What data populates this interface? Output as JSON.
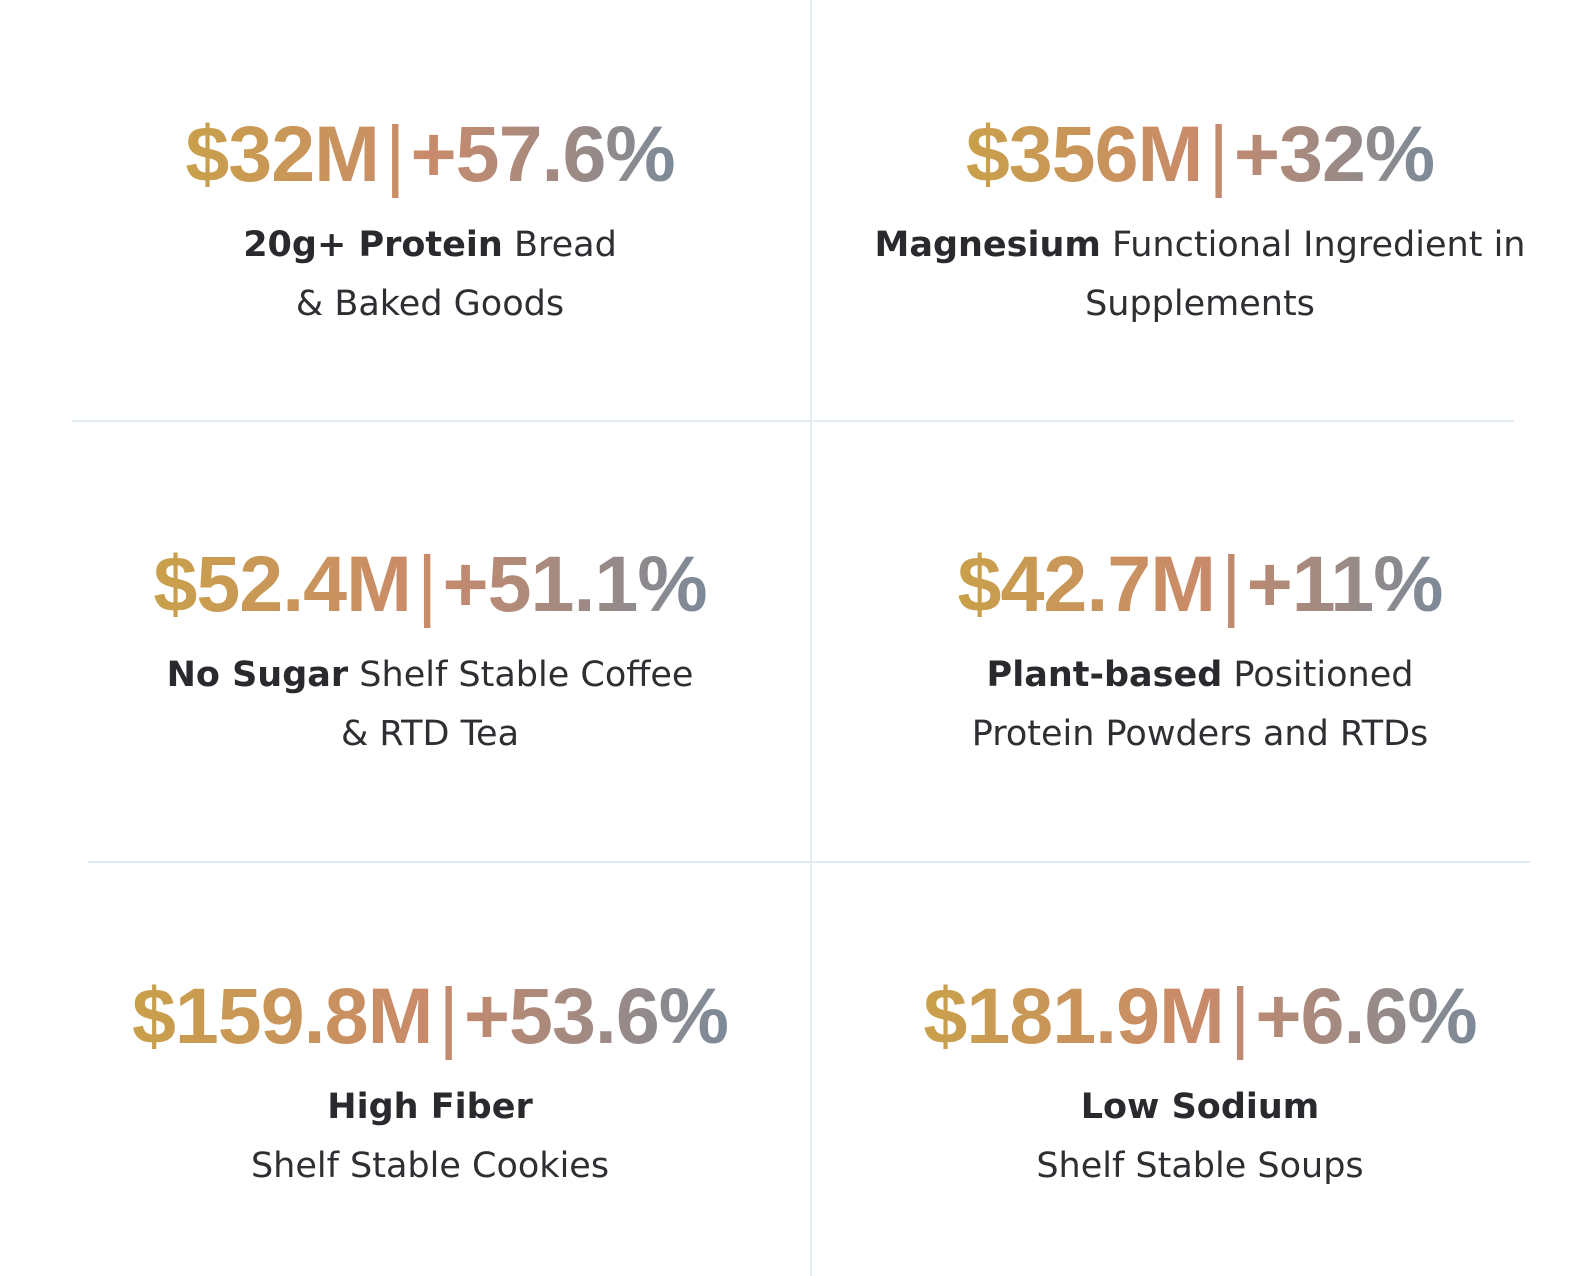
{
  "colors": {
    "gradient_start": "#c9a04a",
    "gradient_mid": "#c98a6a",
    "gradient_end": "#7c8a98",
    "divider": "#e3ebf2",
    "text": "#2e2e33"
  },
  "stats": [
    {
      "value": "$32M",
      "separator": "|",
      "growth": "+57.6%",
      "bold": "20g+ Protein",
      "line1_rest": " Bread",
      "line2": "& Baked Goods"
    },
    {
      "value": "$356M",
      "separator": "|",
      "growth": "+32%",
      "bold": "Magnesium",
      "line1_rest": " Functional Ingredient in",
      "line2": "Supplements"
    },
    {
      "value": "$52.4M",
      "separator": "|",
      "growth": "+51.1%",
      "bold": "No Sugar",
      "line1_rest": " Shelf Stable Coffee",
      "line2": "& RTD Tea"
    },
    {
      "value": "$42.7M",
      "separator": "|",
      "growth": "+11%",
      "bold": "Plant-based",
      "line1_rest": " Positioned",
      "line2": "Protein Powders and RTDs"
    },
    {
      "value": "$159.8M",
      "separator": "|",
      "growth": "+53.6%",
      "bold": "High Fiber",
      "line1_rest": "",
      "line2": "Shelf Stable Cookies"
    },
    {
      "value": "$181.9M",
      "separator": "|",
      "growth": "+6.6%",
      "bold": "Low Sodium",
      "line1_rest": "",
      "line2": "Shelf Stable Soups"
    }
  ]
}
